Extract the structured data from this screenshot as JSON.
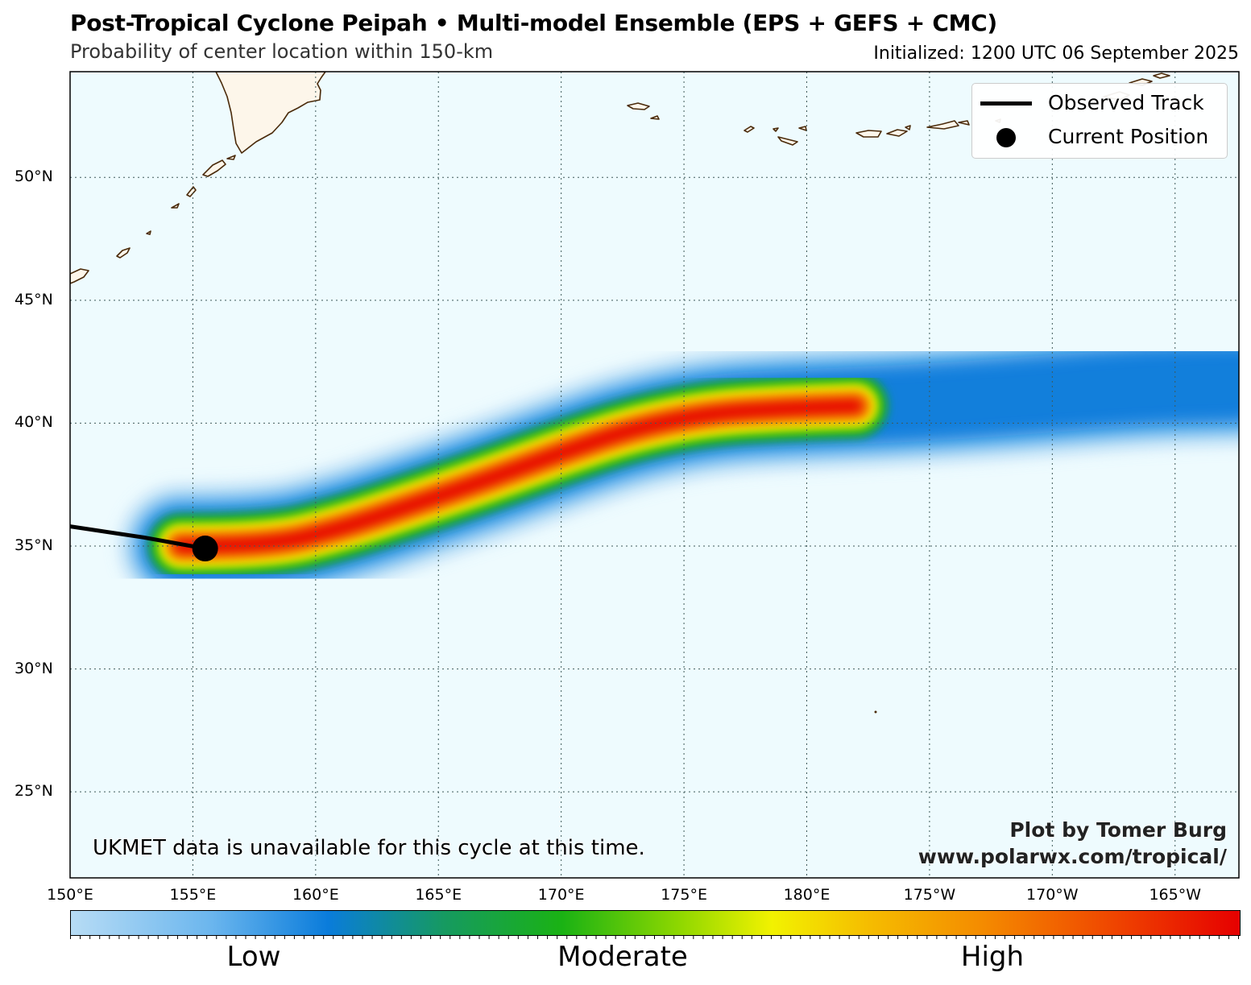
{
  "header": {
    "title": "Post-Tropical Cyclone Peipah • Multi-model Ensemble (EPS + GEFS + CMC)",
    "subtitle": "Probability of center location within 150-km",
    "initialized": "Initialized: 1200 UTC 06 September 2025"
  },
  "map": {
    "lon_range": [
      150,
      197.6
    ],
    "lat_range": [
      21.5,
      54.3
    ],
    "ocean_color": "#eefbfe",
    "land_color": "#fdf6ea",
    "coast_color": "#4a2a0a",
    "gridlines": true,
    "lat_ticks": [
      {
        "value": 25,
        "label": "25°N"
      },
      {
        "value": 30,
        "label": "30°N"
      },
      {
        "value": 35,
        "label": "35°N"
      },
      {
        "value": 40,
        "label": "40°N"
      },
      {
        "value": 45,
        "label": "45°N"
      },
      {
        "value": 50,
        "label": "50°N"
      }
    ],
    "lon_ticks": [
      {
        "value": 150,
        "label": "150°E"
      },
      {
        "value": 155,
        "label": "155°E"
      },
      {
        "value": 160,
        "label": "160°E"
      },
      {
        "value": 165,
        "label": "165°E"
      },
      {
        "value": 170,
        "label": "170°E"
      },
      {
        "value": 175,
        "label": "175°E"
      },
      {
        "value": 180,
        "label": "180°E"
      },
      {
        "value": 185,
        "label": "175°W"
      },
      {
        "value": 190,
        "label": "170°W"
      },
      {
        "value": 195,
        "label": "165°W"
      }
    ]
  },
  "observed_track": [
    [
      150,
      35.8
    ],
    [
      153,
      35.35
    ],
    [
      155.5,
      34.9
    ]
  ],
  "current_position": {
    "lon": 155.5,
    "lat": 34.9
  },
  "probability_axis": [
    [
      154.5,
      35.0
    ],
    [
      158,
      35.0
    ],
    [
      161,
      35.7
    ],
    [
      164,
      36.7
    ],
    [
      167,
      37.7
    ],
    [
      170,
      38.8
    ],
    [
      173,
      39.8
    ],
    [
      176,
      40.4
    ],
    [
      179,
      40.6
    ],
    [
      182,
      40.7
    ],
    [
      186,
      40.9
    ],
    [
      190,
      41.2
    ],
    [
      194,
      41.5
    ],
    [
      197.6,
      41.6
    ]
  ],
  "legend": {
    "observed_track": "Observed Track",
    "current_position": "Current Position"
  },
  "colorbar": {
    "labels": [
      "Low",
      "Moderate",
      "High"
    ],
    "colors": [
      "#b7dcf5",
      "#6bb6ee",
      "#0a7cdb",
      "#169a60",
      "#1ab214",
      "#8ed700",
      "#f2f200",
      "#f5be00",
      "#f48b00",
      "#f04d00",
      "#e60000"
    ]
  },
  "note": "UKMET data is unavailable for this cycle at this time.",
  "credit": {
    "line1": "Plot by Tomer Burg",
    "line2": "www.polarwx.com/tropical/"
  }
}
